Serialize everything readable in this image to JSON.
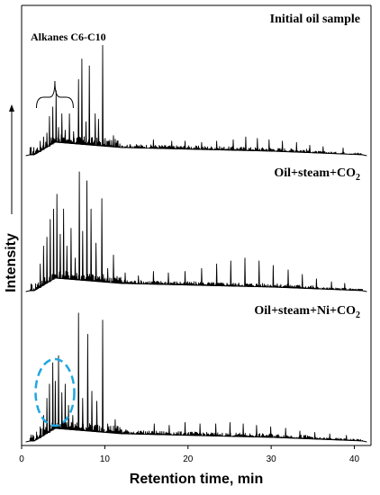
{
  "chart_data": {
    "type": "line",
    "title": "",
    "xlabel": "Retention time, min",
    "ylabel": "Intensity",
    "xlim": [
      0,
      42
    ],
    "xticks": [
      0,
      10,
      20,
      30,
      40
    ],
    "grid": false,
    "annotations": {
      "alkanes_label": "Alkanes C6-C10",
      "alkanes_range": [
        2,
        6
      ],
      "highlighted_range": [
        2,
        6
      ]
    },
    "colors": {
      "trace": "#000000",
      "highlight": "#1ea7e1"
    },
    "series": [
      {
        "name": "Initial oil sample",
        "name_parts": {
          "main": "Initial oil sample"
        },
        "peaks": [
          {
            "x": 2.2,
            "h": 0.1
          },
          {
            "x": 2.6,
            "h": 0.13
          },
          {
            "x": 3.0,
            "h": 0.16
          },
          {
            "x": 3.3,
            "h": 0.28
          },
          {
            "x": 3.7,
            "h": 0.35
          },
          {
            "x": 4.1,
            "h": 0.47
          },
          {
            "x": 4.4,
            "h": 0.2
          },
          {
            "x": 4.8,
            "h": 0.3
          },
          {
            "x": 5.2,
            "h": 0.18
          },
          {
            "x": 5.7,
            "h": 0.3
          },
          {
            "x": 6.2,
            "h": 0.17
          },
          {
            "x": 6.8,
            "h": 0.55
          },
          {
            "x": 7.2,
            "h": 0.7
          },
          {
            "x": 7.7,
            "h": 0.24
          },
          {
            "x": 8.1,
            "h": 0.65
          },
          {
            "x": 8.8,
            "h": 0.3
          },
          {
            "x": 9.2,
            "h": 0.26
          },
          {
            "x": 9.7,
            "h": 0.8
          },
          {
            "x": 10.4,
            "h": 0.1
          },
          {
            "x": 11.0,
            "h": 0.14
          },
          {
            "x": 12.5,
            "h": 0.06
          },
          {
            "x": 15.8,
            "h": 0.11
          },
          {
            "x": 18.0,
            "h": 0.1
          },
          {
            "x": 19.6,
            "h": 0.1
          },
          {
            "x": 21.6,
            "h": 0.09
          },
          {
            "x": 23.4,
            "h": 0.1
          },
          {
            "x": 25.4,
            "h": 0.11
          },
          {
            "x": 26.9,
            "h": 0.13
          },
          {
            "x": 28.3,
            "h": 0.12
          },
          {
            "x": 29.7,
            "h": 0.11
          },
          {
            "x": 31.3,
            "h": 0.1
          },
          {
            "x": 33.0,
            "h": 0.09
          },
          {
            "x": 34.6,
            "h": 0.07
          },
          {
            "x": 36.2,
            "h": 0.06
          },
          {
            "x": 38.6,
            "h": 0.05
          }
        ]
      },
      {
        "name": "Oil+steam+CO2",
        "name_parts": {
          "main": "Oil+steam+CO",
          "sub": "2"
        },
        "peaks": [
          {
            "x": 2.2,
            "h": 0.18
          },
          {
            "x": 2.6,
            "h": 0.3
          },
          {
            "x": 3.0,
            "h": 0.36
          },
          {
            "x": 3.4,
            "h": 0.48
          },
          {
            "x": 3.8,
            "h": 0.55
          },
          {
            "x": 4.2,
            "h": 0.65
          },
          {
            "x": 4.6,
            "h": 0.38
          },
          {
            "x": 5.0,
            "h": 0.55
          },
          {
            "x": 5.4,
            "h": 0.3
          },
          {
            "x": 5.9,
            "h": 0.42
          },
          {
            "x": 6.4,
            "h": 0.22
          },
          {
            "x": 6.9,
            "h": 0.8
          },
          {
            "x": 7.3,
            "h": 0.4
          },
          {
            "x": 7.8,
            "h": 0.74
          },
          {
            "x": 8.3,
            "h": 0.55
          },
          {
            "x": 8.9,
            "h": 0.32
          },
          {
            "x": 9.6,
            "h": 0.62
          },
          {
            "x": 10.3,
            "h": 0.15
          },
          {
            "x": 11.0,
            "h": 0.24
          },
          {
            "x": 12.4,
            "h": 0.12
          },
          {
            "x": 14.0,
            "h": 0.1
          },
          {
            "x": 15.8,
            "h": 0.13
          },
          {
            "x": 17.6,
            "h": 0.12
          },
          {
            "x": 19.6,
            "h": 0.13
          },
          {
            "x": 21.6,
            "h": 0.15
          },
          {
            "x": 23.4,
            "h": 0.18
          },
          {
            "x": 25.1,
            "h": 0.2
          },
          {
            "x": 26.8,
            "h": 0.22
          },
          {
            "x": 28.5,
            "h": 0.2
          },
          {
            "x": 30.2,
            "h": 0.17
          },
          {
            "x": 32.0,
            "h": 0.14
          },
          {
            "x": 33.7,
            "h": 0.11
          },
          {
            "x": 35.4,
            "h": 0.08
          },
          {
            "x": 37.2,
            "h": 0.06
          },
          {
            "x": 38.8,
            "h": 0.05
          }
        ]
      },
      {
        "name": "Oil+steam+Ni+CO2",
        "name_parts": {
          "main": "Oil+steam+Ni+CO",
          "sub": "2"
        },
        "peaks": [
          {
            "x": 2.2,
            "h": 0.1
          },
          {
            "x": 2.6,
            "h": 0.18
          },
          {
            "x": 3.0,
            "h": 0.3
          },
          {
            "x": 3.3,
            "h": 0.4
          },
          {
            "x": 3.7,
            "h": 0.55
          },
          {
            "x": 4.0,
            "h": 0.42
          },
          {
            "x": 4.4,
            "h": 0.6
          },
          {
            "x": 4.8,
            "h": 0.34
          },
          {
            "x": 5.2,
            "h": 0.4
          },
          {
            "x": 5.6,
            "h": 0.25
          },
          {
            "x": 6.1,
            "h": 0.18
          },
          {
            "x": 6.8,
            "h": 0.9
          },
          {
            "x": 7.3,
            "h": 0.3
          },
          {
            "x": 7.9,
            "h": 0.75
          },
          {
            "x": 8.4,
            "h": 0.35
          },
          {
            "x": 9.0,
            "h": 0.28
          },
          {
            "x": 9.7,
            "h": 0.85
          },
          {
            "x": 10.3,
            "h": 0.12
          },
          {
            "x": 11.2,
            "h": 0.15
          },
          {
            "x": 12.5,
            "h": 0.08
          },
          {
            "x": 14.3,
            "h": 0.07
          },
          {
            "x": 15.9,
            "h": 0.12
          },
          {
            "x": 17.7,
            "h": 0.11
          },
          {
            "x": 19.6,
            "h": 0.13
          },
          {
            "x": 21.4,
            "h": 0.12
          },
          {
            "x": 23.3,
            "h": 0.12
          },
          {
            "x": 25.0,
            "h": 0.13
          },
          {
            "x": 26.6,
            "h": 0.12
          },
          {
            "x": 28.2,
            "h": 0.11
          },
          {
            "x": 29.9,
            "h": 0.1
          },
          {
            "x": 31.7,
            "h": 0.09
          },
          {
            "x": 33.4,
            "h": 0.07
          },
          {
            "x": 35.2,
            "h": 0.06
          },
          {
            "x": 37.0,
            "h": 0.05
          },
          {
            "x": 39.0,
            "h": 0.04
          }
        ]
      }
    ]
  }
}
